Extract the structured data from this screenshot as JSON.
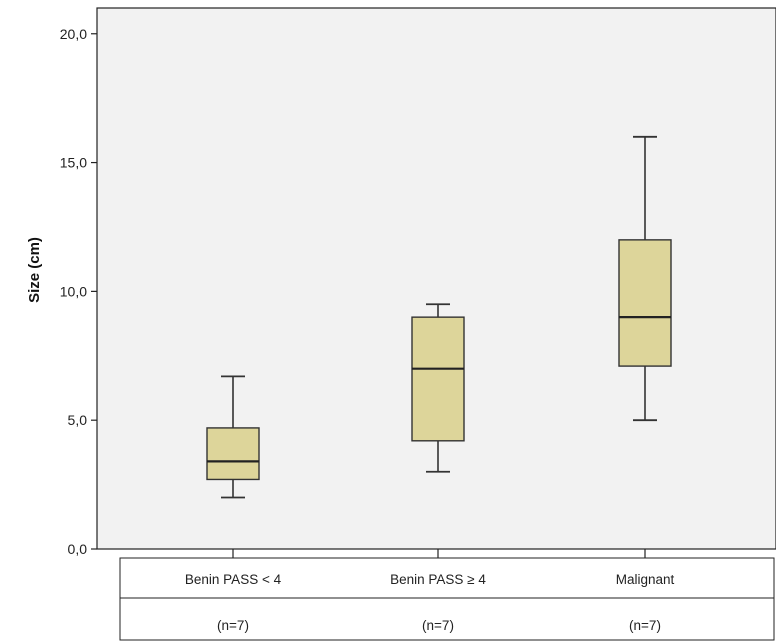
{
  "chart_data": {
    "type": "boxplot",
    "ylabel": "Size  (cm)",
    "ylim": [
      0,
      21
    ],
    "yticks": [
      "0,0",
      "5,0",
      "10,0",
      "15,0",
      "20,0"
    ],
    "ytick_values": [
      0,
      5,
      10,
      15,
      20
    ],
    "grid": false,
    "box_color": "#ddd59a",
    "box_stroke": "#333333",
    "plot_background": "#f2f2f2",
    "categories": [
      "Benin PASS < 4",
      "Benin PASS ≥ 4",
      "Malignant"
    ],
    "sample_sizes": [
      "(n=7)",
      "(n=7)",
      "(n=7)"
    ],
    "boxes": [
      {
        "min": 2.0,
        "q1": 2.7,
        "median": 3.4,
        "q3": 4.7,
        "max": 6.7
      },
      {
        "min": 3.0,
        "q1": 4.2,
        "median": 7.0,
        "q3": 9.0,
        "max": 9.5
      },
      {
        "min": 5.0,
        "q1": 7.1,
        "median": 9.0,
        "q3": 12.0,
        "max": 16.0
      }
    ]
  }
}
